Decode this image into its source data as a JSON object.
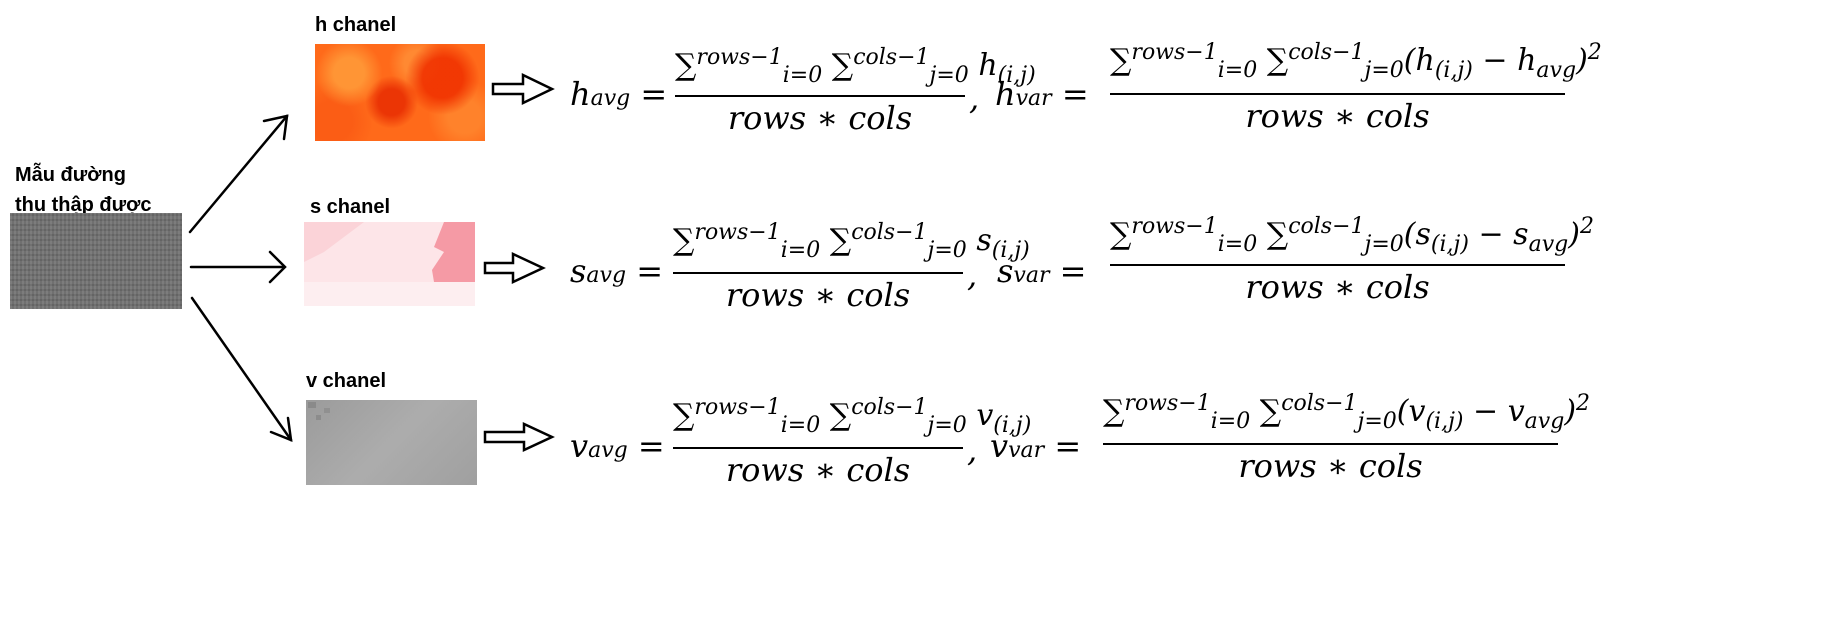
{
  "source": {
    "label": "Mẫu đường thu thập được",
    "line1": "Mẫu đường",
    "line2": "thu thập được"
  },
  "channels": [
    {
      "label": "h chanel",
      "avg_lhs": "h",
      "avg_sub": "avg",
      "avg_num": "∑ rows−1 i=0 ∑ cols−1 j=0 h(i,j)",
      "avg_den": "rows ∗ cols",
      "var_lhs": "h",
      "var_sub": "var",
      "var_num": "∑ rows−1 i=0 ∑ cols−1 j=0 (h(i,j) − havg)²",
      "var_den": "rows ∗ cols"
    },
    {
      "label": "s chanel",
      "avg_lhs": "s",
      "avg_sub": "avg",
      "avg_num": "∑ rows−1 i=0 ∑ cols−1 j=0 s(i,j)",
      "avg_den": "rows ∗ cols",
      "var_lhs": "s",
      "var_sub": "var",
      "var_num": "∑ rows−1 i=0 ∑ cols−1 j=0 (s(i,j) − savg)²",
      "var_den": "rows ∗ cols"
    },
    {
      "label": "v chanel",
      "avg_lhs": "v",
      "avg_sub": "avg",
      "avg_num": "∑ rows−1 i=0 ∑ cols−1 j=0 v(i,j)",
      "avg_den": "rows ∗ cols",
      "var_lhs": "v",
      "var_sub": "var",
      "var_num": "∑ rows−1 i=0 ∑ cols−1 j=0 (v(i,j) − vavg)²",
      "var_den": "rows ∗ cols"
    }
  ],
  "symbols": {
    "sum": "∑",
    "upper_rows": "rows−1",
    "upper_cols": "cols−1",
    "lower_i": "i=0",
    "lower_j": "j=0",
    "index": "(i,j)",
    "minus": "−",
    "square": "2",
    "equals": "=",
    "comma": ",",
    "den": "rows ∗ cols"
  },
  "colors": {
    "h_patch_base": "#ff5a14",
    "s_patch_base": "#fde3e6",
    "s_patch_accent": "#f59aa5",
    "v_patch_base": "#a6a6a6",
    "source_patch": "#707070"
  }
}
